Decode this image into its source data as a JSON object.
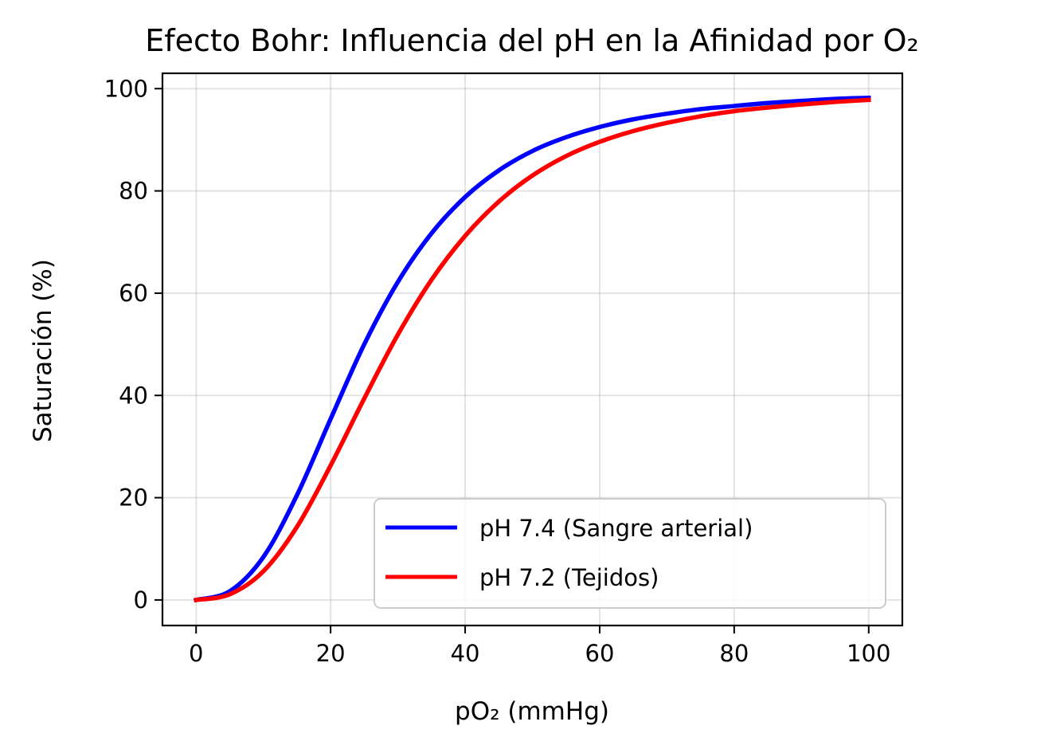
{
  "chart_data": {
    "type": "line",
    "title": "Efecto Bohr: Influencia del pH en la Afinidad por O₂",
    "xlabel": "pO₂ (mmHg)",
    "ylabel": "Saturación (%)",
    "xlim": [
      -5,
      105
    ],
    "ylim": [
      -5,
      103
    ],
    "xticks": [
      0,
      20,
      40,
      60,
      80,
      100
    ],
    "yticks": [
      0,
      20,
      40,
      60,
      80,
      100
    ],
    "xtick_labels": [
      "0",
      "20",
      "40",
      "60",
      "80",
      "100"
    ],
    "ytick_labels": [
      "0",
      "20",
      "40",
      "60",
      "80",
      "100"
    ],
    "grid": true,
    "legend_position": "lower-right",
    "series": [
      {
        "name": "pH 7.4 (Sangre arterial)",
        "color": "#0000ff",
        "x": [
          0,
          5,
          10,
          15,
          20,
          25,
          30,
          35,
          40,
          45,
          50,
          55,
          60,
          65,
          70,
          75,
          80,
          85,
          90,
          95,
          100
        ],
        "y": [
          0,
          1.7,
          8.4,
          20.5,
          35.4,
          50.0,
          62.2,
          71.7,
          78.8,
          84.0,
          87.8,
          90.5,
          92.5,
          94.0,
          95.1,
          96.0,
          96.6,
          97.2,
          97.6,
          98.0,
          98.2
        ]
      },
      {
        "name": "pH 7.2 (Tejidos)",
        "color": "#ff0000",
        "x": [
          0,
          5,
          10,
          15,
          20,
          25,
          30,
          35,
          40,
          45,
          50,
          55,
          60,
          65,
          70,
          75,
          80,
          85,
          90,
          95,
          100
        ],
        "y": [
          0,
          1.1,
          5.6,
          14.3,
          26.3,
          39.4,
          51.9,
          62.6,
          71.2,
          77.9,
          83.0,
          86.8,
          89.6,
          91.7,
          93.3,
          94.6,
          95.6,
          96.3,
          96.9,
          97.4,
          97.8
        ]
      }
    ]
  }
}
